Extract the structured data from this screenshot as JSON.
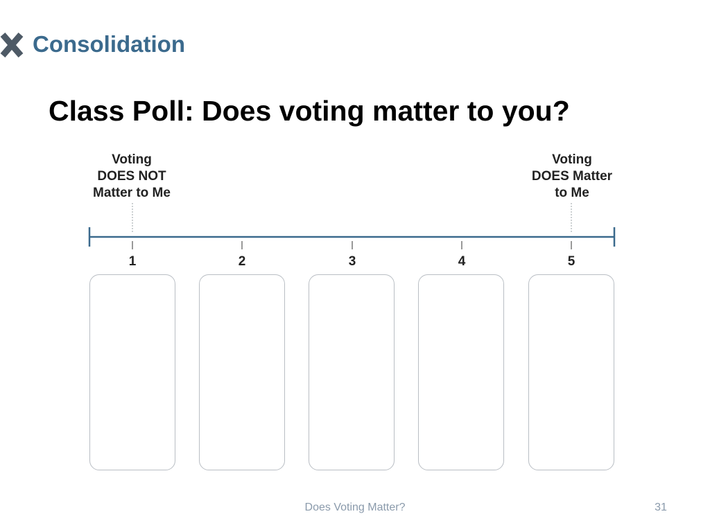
{
  "header": {
    "icon": "x-mark-icon",
    "icon_color": "#4e5a66",
    "section_title": "Consolidation",
    "section_color": "#3b6a8d"
  },
  "slide": {
    "title": "Class Poll: Does voting matter to you?"
  },
  "scale": {
    "left_label": [
      "Voting",
      "DOES NOT",
      "Matter to Me"
    ],
    "right_label": [
      "Voting",
      "DOES Matter",
      "to Me"
    ],
    "ticks": [
      "1",
      "2",
      "3",
      "4",
      "5"
    ],
    "line_color": "#3b6a8d"
  },
  "footer": {
    "text": "Does Voting Matter?",
    "page_number": "31"
  }
}
